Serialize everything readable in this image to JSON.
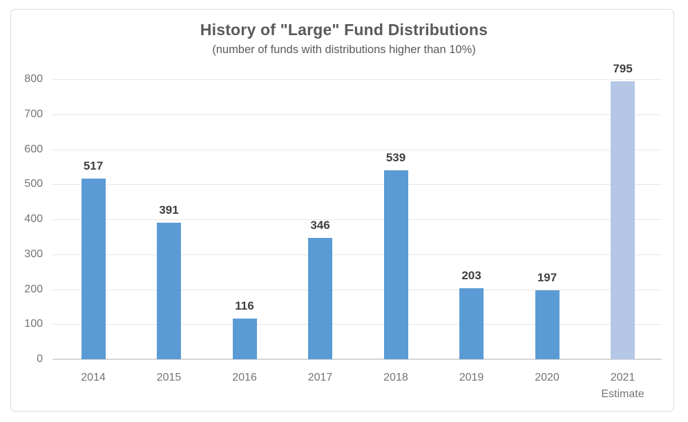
{
  "chart_data": {
    "type": "bar",
    "title": "History of \"Large\" Fund Distributions",
    "subtitle": "(number of funds with distributions higher than 10%)",
    "categories": [
      "2014",
      "2015",
      "2016",
      "2017",
      "2018",
      "2019",
      "2020",
      "2021"
    ],
    "category_sublabels": [
      "",
      "",
      "",
      "",
      "",
      "",
      "",
      "Estimate"
    ],
    "values": [
      517,
      391,
      116,
      346,
      539,
      203,
      197,
      795
    ],
    "data_labels": [
      "517",
      "391",
      "116",
      "346",
      "539",
      "203",
      "197",
      "795"
    ],
    "bar_colors": [
      "#5B9BD5",
      "#5B9BD5",
      "#5B9BD5",
      "#5B9BD5",
      "#5B9BD5",
      "#5B9BD5",
      "#5B9BD5",
      "#B4C7E7"
    ],
    "yticks": [
      0,
      100,
      200,
      300,
      400,
      500,
      600,
      700,
      800
    ],
    "ytick_labels": [
      "0",
      "100",
      "200",
      "300",
      "400",
      "500",
      "600",
      "700",
      "800"
    ],
    "ylim": [
      0,
      800
    ],
    "xlabel": "",
    "ylabel": "",
    "grid": true,
    "legend_position": "none",
    "colors": {
      "bar_default": "#5B9BD5",
      "bar_estimate": "#B4C7E7",
      "gridline": "#E6E6E6",
      "axis_line": "#D6D6D6",
      "title_text": "#595959",
      "subtitle_text": "#595959",
      "axis_text": "#737373",
      "data_label_text": "#3F3F3F",
      "frame_border": "#D9D9D9"
    }
  }
}
